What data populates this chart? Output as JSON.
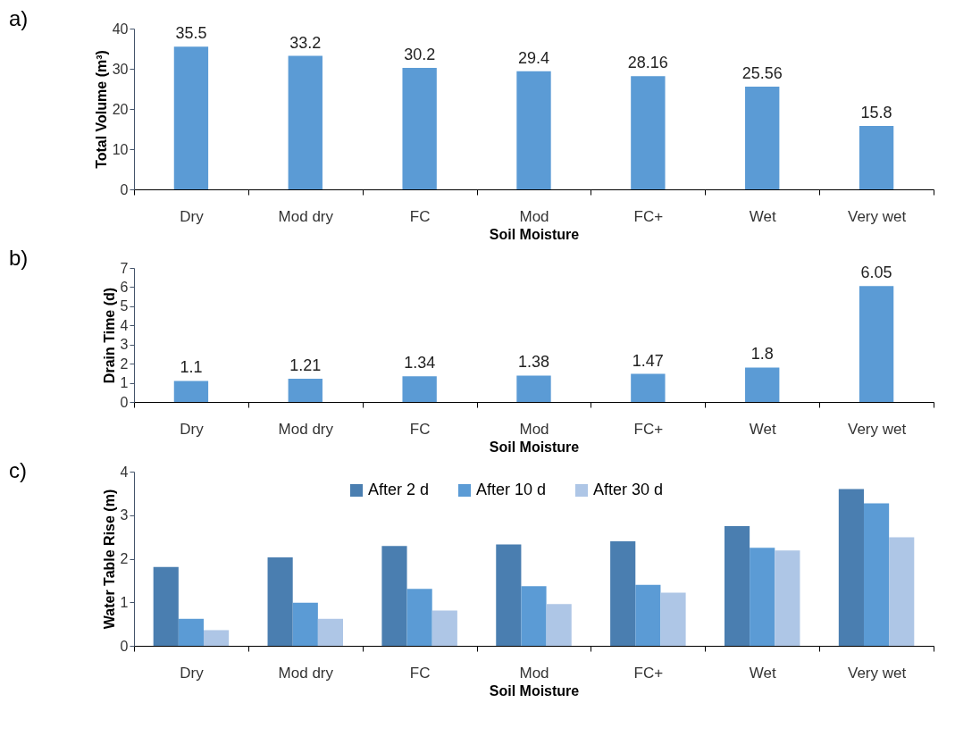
{
  "chart_data": [
    {
      "type": "bar",
      "title": "a)",
      "xlabel": "Soil Moisture",
      "ylabel": "Total Volume (m³)",
      "categories": [
        "Dry",
        "Mod dry",
        "FC",
        "Mod",
        "FC+",
        "Wet",
        "Very wet"
      ],
      "values": [
        35.5,
        33.2,
        30.2,
        29.4,
        28.16,
        25.56,
        15.8
      ],
      "color": "#5b9bd5",
      "ylim": [
        0,
        40
      ],
      "yticks": [
        0,
        10,
        20,
        30,
        40
      ],
      "data_labels": true
    },
    {
      "type": "bar",
      "title": "b)",
      "xlabel": "Soil Moisture",
      "ylabel": "Drain Time (d)",
      "categories": [
        "Dry",
        "Mod dry",
        "FC",
        "Mod",
        "FC+",
        "Wet",
        "Very wet"
      ],
      "values": [
        1.1,
        1.21,
        1.34,
        1.38,
        1.47,
        1.8,
        6.05
      ],
      "color": "#5b9bd5",
      "ylim": [
        0,
        7
      ],
      "yticks": [
        0,
        1,
        2,
        3,
        4,
        5,
        6,
        7
      ],
      "data_labels": true
    },
    {
      "type": "bar",
      "title": "c)",
      "xlabel": "Soil Moisture",
      "ylabel": "Water Table Rise (m)",
      "categories": [
        "Dry",
        "Mod dry",
        "FC",
        "Mod",
        "FC+",
        "Wet",
        "Very wet"
      ],
      "ylim": [
        0,
        4
      ],
      "yticks": [
        0,
        1,
        2,
        3,
        4
      ],
      "legend": "top",
      "series": [
        {
          "name": "After 2 d",
          "color": "#4a7eb0",
          "values": [
            1.81,
            2.03,
            2.29,
            2.33,
            2.4,
            2.75,
            3.6
          ]
        },
        {
          "name": "After 10 d",
          "color": "#5b9bd5",
          "values": [
            0.62,
            0.99,
            1.31,
            1.37,
            1.4,
            2.25,
            3.27
          ]
        },
        {
          "name": "After 30 d",
          "color": "#aec6e6",
          "values": [
            0.36,
            0.62,
            0.81,
            0.96,
            1.22,
            2.19,
            2.49
          ]
        }
      ]
    }
  ]
}
